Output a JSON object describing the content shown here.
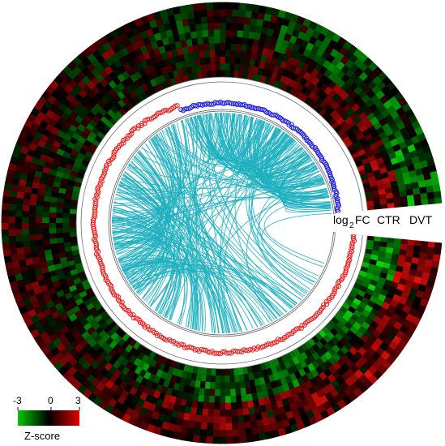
{
  "chart_data": {
    "type": "circos",
    "track_labels": {
      "log2fc": "log₂FC",
      "log2fc_base": "log",
      "log2fc_sub": "2",
      "log2fc_tail": "FC",
      "ctr": "CTR",
      "dvt": "DVT"
    },
    "legend": {
      "title": "Z-score",
      "ticks": [
        "-3",
        "0",
        "3"
      ],
      "range": [
        -3,
        3
      ],
      "colors": {
        "low": "#00c800",
        "mid": "#000000",
        "high": "#e00000"
      }
    },
    "heatmap_tracks": {
      "ctr_rings": 5,
      "dvt_rings": 6,
      "segments_per_ring": 200
    },
    "scatter": {
      "up_color": "#ee1c1c",
      "down_color": "#1d1de0",
      "up_points": 260,
      "down_points": 120
    },
    "links": {
      "color": "#1fb0c0",
      "count": 340
    },
    "gap": {
      "position": "right"
    }
  }
}
